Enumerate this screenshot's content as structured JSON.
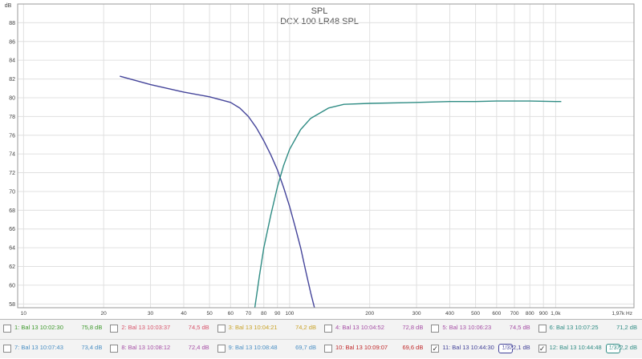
{
  "chart_data": {
    "type": "line",
    "title": "SPL",
    "subtitle": "DCX 100 LR48 SPL",
    "ylabel": "dB",
    "xlabel": "Hz",
    "x_scale": "log",
    "xlim": [
      9.5,
      1970
    ],
    "ylim": [
      57.6,
      90
    ],
    "y_ticks": [
      58,
      60,
      62,
      64,
      66,
      68,
      70,
      72,
      74,
      76,
      78,
      80,
      82,
      84,
      86,
      88
    ],
    "x_ticks": [
      {
        "v": 10,
        "label": "10"
      },
      {
        "v": 20,
        "label": "20"
      },
      {
        "v": 30,
        "label": "30"
      },
      {
        "v": 40,
        "label": "40"
      },
      {
        "v": 50,
        "label": "50"
      },
      {
        "v": 60,
        "label": "60"
      },
      {
        "v": 70,
        "label": "70"
      },
      {
        "v": 80,
        "label": "80"
      },
      {
        "v": 90,
        "label": "90"
      },
      {
        "v": 100,
        "label": "100"
      },
      {
        "v": 200,
        "label": "200"
      },
      {
        "v": 300,
        "label": "300"
      },
      {
        "v": 400,
        "label": "400"
      },
      {
        "v": 500,
        "label": "500"
      },
      {
        "v": 600,
        "label": "600"
      },
      {
        "v": 700,
        "label": "700"
      },
      {
        "v": 800,
        "label": "800"
      },
      {
        "v": 900,
        "label": "900"
      },
      {
        "v": 1000,
        "label": "1,0k"
      },
      {
        "v": 1970,
        "label": "1,97k Hz"
      }
    ],
    "grid": true,
    "series": [
      {
        "color": "#44449a",
        "points": [
          [
            23,
            82.3
          ],
          [
            30,
            81.4
          ],
          [
            40,
            80.6
          ],
          [
            50,
            80.1
          ],
          [
            60,
            79.5
          ],
          [
            65,
            78.9
          ],
          [
            70,
            78.0
          ],
          [
            75,
            76.8
          ],
          [
            80,
            75.4
          ],
          [
            85,
            73.9
          ],
          [
            90,
            72.3
          ],
          [
            95,
            70.4
          ],
          [
            100,
            68.4
          ],
          [
            105,
            66.2
          ],
          [
            110,
            64.0
          ],
          [
            115,
            61.5
          ],
          [
            120,
            59.2
          ],
          [
            124,
            57.6
          ]
        ]
      },
      {
        "color": "#2f8c84",
        "points": [
          [
            74,
            57.6
          ],
          [
            77,
            61.0
          ],
          [
            80,
            64.0
          ],
          [
            85,
            67.5
          ],
          [
            90,
            70.5
          ],
          [
            95,
            72.8
          ],
          [
            100,
            74.5
          ],
          [
            110,
            76.6
          ],
          [
            120,
            77.8
          ],
          [
            140,
            78.9
          ],
          [
            160,
            79.3
          ],
          [
            200,
            79.4
          ],
          [
            300,
            79.5
          ],
          [
            400,
            79.6
          ],
          [
            500,
            79.6
          ],
          [
            600,
            79.65
          ],
          [
            800,
            79.65
          ],
          [
            1000,
            79.6
          ],
          [
            1050,
            79.6
          ]
        ]
      }
    ]
  },
  "legend": {
    "rows": [
      [
        {
          "checked": false,
          "label": "1: Bal 13 10:02:30",
          "value": "75,8 dB",
          "label_color": "#3f9a2e",
          "value_color": "#3f9a2e"
        },
        {
          "checked": false,
          "label": "2: Bal 13 10:03:37",
          "value": "74,5 dB",
          "label_color": "#d8546b",
          "value_color": "#d8546b"
        },
        {
          "checked": false,
          "label": "3: Bal 13 10:04:21",
          "value": "74,2 dB",
          "label_color": "#c9a227",
          "value_color": "#c9a227"
        },
        {
          "checked": false,
          "label": "4: Bal 13 10:04:52",
          "value": "72,8 dB",
          "label_color": "#a64fa6",
          "value_color": "#a64fa6"
        }
      ],
      [
        {
          "checked": false,
          "label": "5: Bal 13 10:06:23",
          "value": "74,5 dB",
          "label_color": "#a64fa6",
          "value_color": "#a64fa6"
        },
        {
          "checked": false,
          "label": "6: Bal 13 10:07:25",
          "value": "71,2 dB",
          "label_color": "#2f8c84",
          "value_color": "#2f8c84"
        },
        {
          "checked": false,
          "label": "7: Bal 13 10:07:43",
          "value": "73,4 dB",
          "label_color": "#4a8fc4",
          "value_color": "#4a8fc4"
        },
        {
          "checked": false,
          "label": "8: Bal 13 10:08:12",
          "value": "72,4 dB",
          "label_color": "#a64fa6",
          "value_color": "#a64fa6"
        }
      ],
      [
        {
          "checked": false,
          "label": "9: Bal 13 10:08:48",
          "value": "69,7 dB",
          "label_color": "#4a8fc4",
          "value_color": "#4a8fc4"
        },
        {
          "checked": false,
          "label": "10: Bal 13 10:09:07",
          "value": "69,6 dB",
          "label_color": "#c0282a",
          "value_color": "#c0282a"
        },
        {
          "checked": true,
          "label": "11: Bal 13 10:44:30",
          "value": "72,1 dB",
          "label_color": "#44449a",
          "value_color": "#44449a",
          "smoothing": "1/3"
        },
        {
          "checked": true,
          "label": "12: Bal 13 10:44:48",
          "value": "72,2 dB",
          "label_color": "#2f8c84",
          "value_color": "#2f8c84",
          "smoothing": "1/3"
        }
      ]
    ]
  }
}
